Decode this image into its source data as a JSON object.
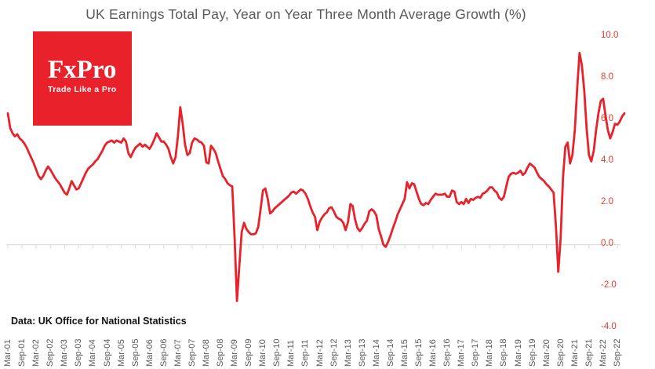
{
  "title": "UK Earnings Total Pay, Year on Year Three Month Average Growth (%)",
  "logo": {
    "name": "FxPro",
    "tagline": "Trade Like a Pro"
  },
  "source_note": "Data: UK Office for National Statistics",
  "colors": {
    "line": "#e8212b",
    "logo_bg": "#e8212b",
    "logo_text": "#ffffff",
    "title_text": "#595959",
    "x_label_text": "#595959",
    "y_label_text": "#e8392b",
    "axis_line": "#d9d9d9",
    "source_text": "#111111"
  },
  "chart_data": {
    "type": "line",
    "title": "UK Earnings Total Pay, Year on Year Three Month Average Growth (%)",
    "series_name": "Total pay YoY 3-month average growth (%)",
    "frequency": "monthly",
    "x_start": "2001-03",
    "x_end": "2022-12",
    "xlabel": "",
    "ylabel": "",
    "y_axis_side": "right",
    "grid": false,
    "x_label_rotation": -90,
    "ylim": [
      -4.0,
      10.0
    ],
    "y_ticks": [
      10,
      8,
      6,
      4,
      2,
      0,
      -2,
      -4
    ],
    "y_tick_labels": [
      "10.0",
      "8.0",
      "6.0",
      "4.0",
      "2.0",
      "0.0",
      "-2.0",
      "-4.0"
    ],
    "x_tick_labels": [
      "Mar-01",
      "Sep-01",
      "Mar-02",
      "Sep-02",
      "Mar-03",
      "Sep-03",
      "Mar-04",
      "Sep-04",
      "Mar-05",
      "Sep-05",
      "Mar-06",
      "Sep-06",
      "Mar-07",
      "Sep-07",
      "Mar-08",
      "Sep-08",
      "Mar-09",
      "Sep-09",
      "Mar-10",
      "Sep-10",
      "Mar-11",
      "Sep-11",
      "Mar-12",
      "Sep-12",
      "Mar-13",
      "Sep-13",
      "Mar-14",
      "Sep-14",
      "Mar-15",
      "Sep-15",
      "Mar-16",
      "Sep-16",
      "Mar-17",
      "Sep-17",
      "Mar-18",
      "Sep-18",
      "Mar-19",
      "Sep-19",
      "Mar-20",
      "Sep-20",
      "Mar-21",
      "Sep-21",
      "Mar-22",
      "Sep-22"
    ],
    "values": [
      6.3,
      5.6,
      5.35,
      5.2,
      5.3,
      5.1,
      5.0,
      4.85,
      4.65,
      4.4,
      4.15,
      3.9,
      3.6,
      3.3,
      3.15,
      3.3,
      3.55,
      3.75,
      3.6,
      3.4,
      3.2,
      3.05,
      2.9,
      2.7,
      2.5,
      2.4,
      2.7,
      3.05,
      2.85,
      2.65,
      2.7,
      2.95,
      3.2,
      3.45,
      3.65,
      3.75,
      3.85,
      4.0,
      4.1,
      4.3,
      4.5,
      4.75,
      4.9,
      4.95,
      5.0,
      4.9,
      5.0,
      4.95,
      4.9,
      5.1,
      4.95,
      4.4,
      4.2,
      4.45,
      4.65,
      4.75,
      4.85,
      4.7,
      4.8,
      4.7,
      4.6,
      4.8,
      5.05,
      5.35,
      5.15,
      4.95,
      4.95,
      4.8,
      4.6,
      4.2,
      3.9,
      4.2,
      5.2,
      6.6,
      5.8,
      4.8,
      4.3,
      4.4,
      4.9,
      5.1,
      5.05,
      4.95,
      4.9,
      4.75,
      3.95,
      3.9,
      4.75,
      4.6,
      4.4,
      4.0,
      3.65,
      3.3,
      3.15,
      2.95,
      2.85,
      2.8,
      0.3,
      -2.7,
      -1.0,
      0.6,
      1.05,
      0.75,
      0.6,
      0.5,
      0.5,
      0.55,
      0.85,
      1.7,
      2.6,
      2.7,
      2.2,
      1.5,
      1.6,
      1.75,
      1.85,
      1.95,
      2.05,
      2.15,
      2.25,
      2.35,
      2.5,
      2.55,
      2.45,
      2.55,
      2.65,
      2.6,
      2.45,
      2.2,
      1.85,
      1.55,
      1.35,
      0.7,
      1.1,
      1.3,
      1.45,
      1.55,
      1.75,
      1.8,
      1.6,
      1.35,
      1.25,
      1.2,
      1.05,
      0.7,
      1.1,
      1.95,
      1.85,
      1.2,
      0.8,
      0.65,
      0.8,
      1.0,
      1.15,
      1.6,
      1.7,
      1.6,
      1.4,
      0.75,
      0.4,
      0.0,
      -0.1,
      0.15,
      0.45,
      0.8,
      1.1,
      1.45,
      1.7,
      1.95,
      2.2,
      3.0,
      2.7,
      2.95,
      2.9,
      2.55,
      2.2,
      1.95,
      1.9,
      2.0,
      1.95,
      2.15,
      2.3,
      2.45,
      2.4,
      2.4,
      2.4,
      2.45,
      2.3,
      2.3,
      2.6,
      2.55,
      2.05,
      1.95,
      2.05,
      1.95,
      2.2,
      2.0,
      2.2,
      2.15,
      2.25,
      2.3,
      2.25,
      2.45,
      2.5,
      2.6,
      2.75,
      2.75,
      2.6,
      2.5,
      2.25,
      2.15,
      2.3,
      2.8,
      3.25,
      3.4,
      3.45,
      3.4,
      3.45,
      3.55,
      3.35,
      3.45,
      3.7,
      3.9,
      3.8,
      3.7,
      3.45,
      3.25,
      3.15,
      3.05,
      2.9,
      2.8,
      2.65,
      2.5,
      0.9,
      -1.3,
      0.3,
      3.2,
      4.7,
      4.9,
      3.9,
      4.3,
      5.5,
      7.5,
      9.2,
      8.6,
      7.4,
      5.6,
      4.3,
      4.0,
      4.5,
      5.5,
      6.3,
      6.9,
      7.0,
      6.2,
      5.5,
      5.1,
      5.4,
      5.8,
      5.75,
      5.9,
      6.15,
      6.3
    ]
  }
}
